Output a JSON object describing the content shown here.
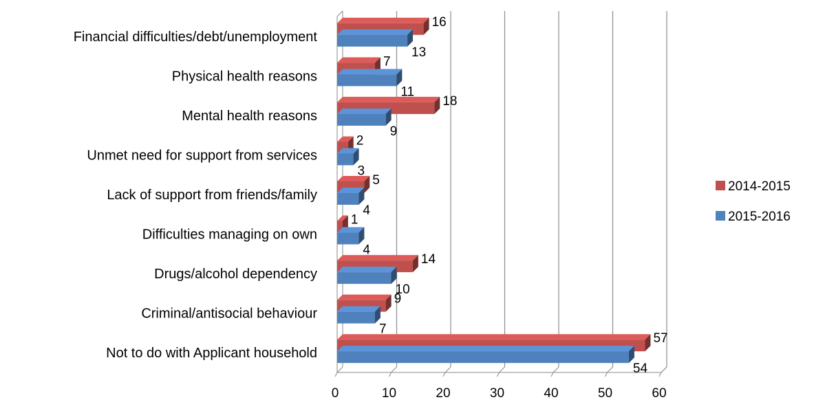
{
  "chart_data": {
    "type": "bar",
    "orientation": "horizontal",
    "style": "3d-clustered",
    "categories": [
      "Financial difficulties/debt/unemployment",
      "Physical health reasons",
      "Mental health reasons",
      "Unmet need for support from services",
      "Lack of support from friends/family",
      "Difficulties managing on own",
      "Drugs/alcohol dependency",
      "Criminal/antisocial behaviour",
      "Not to do with Applicant household"
    ],
    "series": [
      {
        "name": "2014-2015",
        "color": "#C0504D",
        "values": [
          16,
          7,
          18,
          2,
          5,
          1,
          14,
          9,
          57
        ]
      },
      {
        "name": "2015-2016",
        "color": "#4F81BD",
        "values": [
          13,
          11,
          9,
          3,
          4,
          4,
          10,
          7,
          54
        ]
      }
    ],
    "x_ticks": [
      "0",
      "10",
      "20",
      "30",
      "40",
      "50",
      "60"
    ],
    "xlim": [
      0,
      60
    ],
    "grid": true,
    "legend_position": "right",
    "data_labels": true
  }
}
